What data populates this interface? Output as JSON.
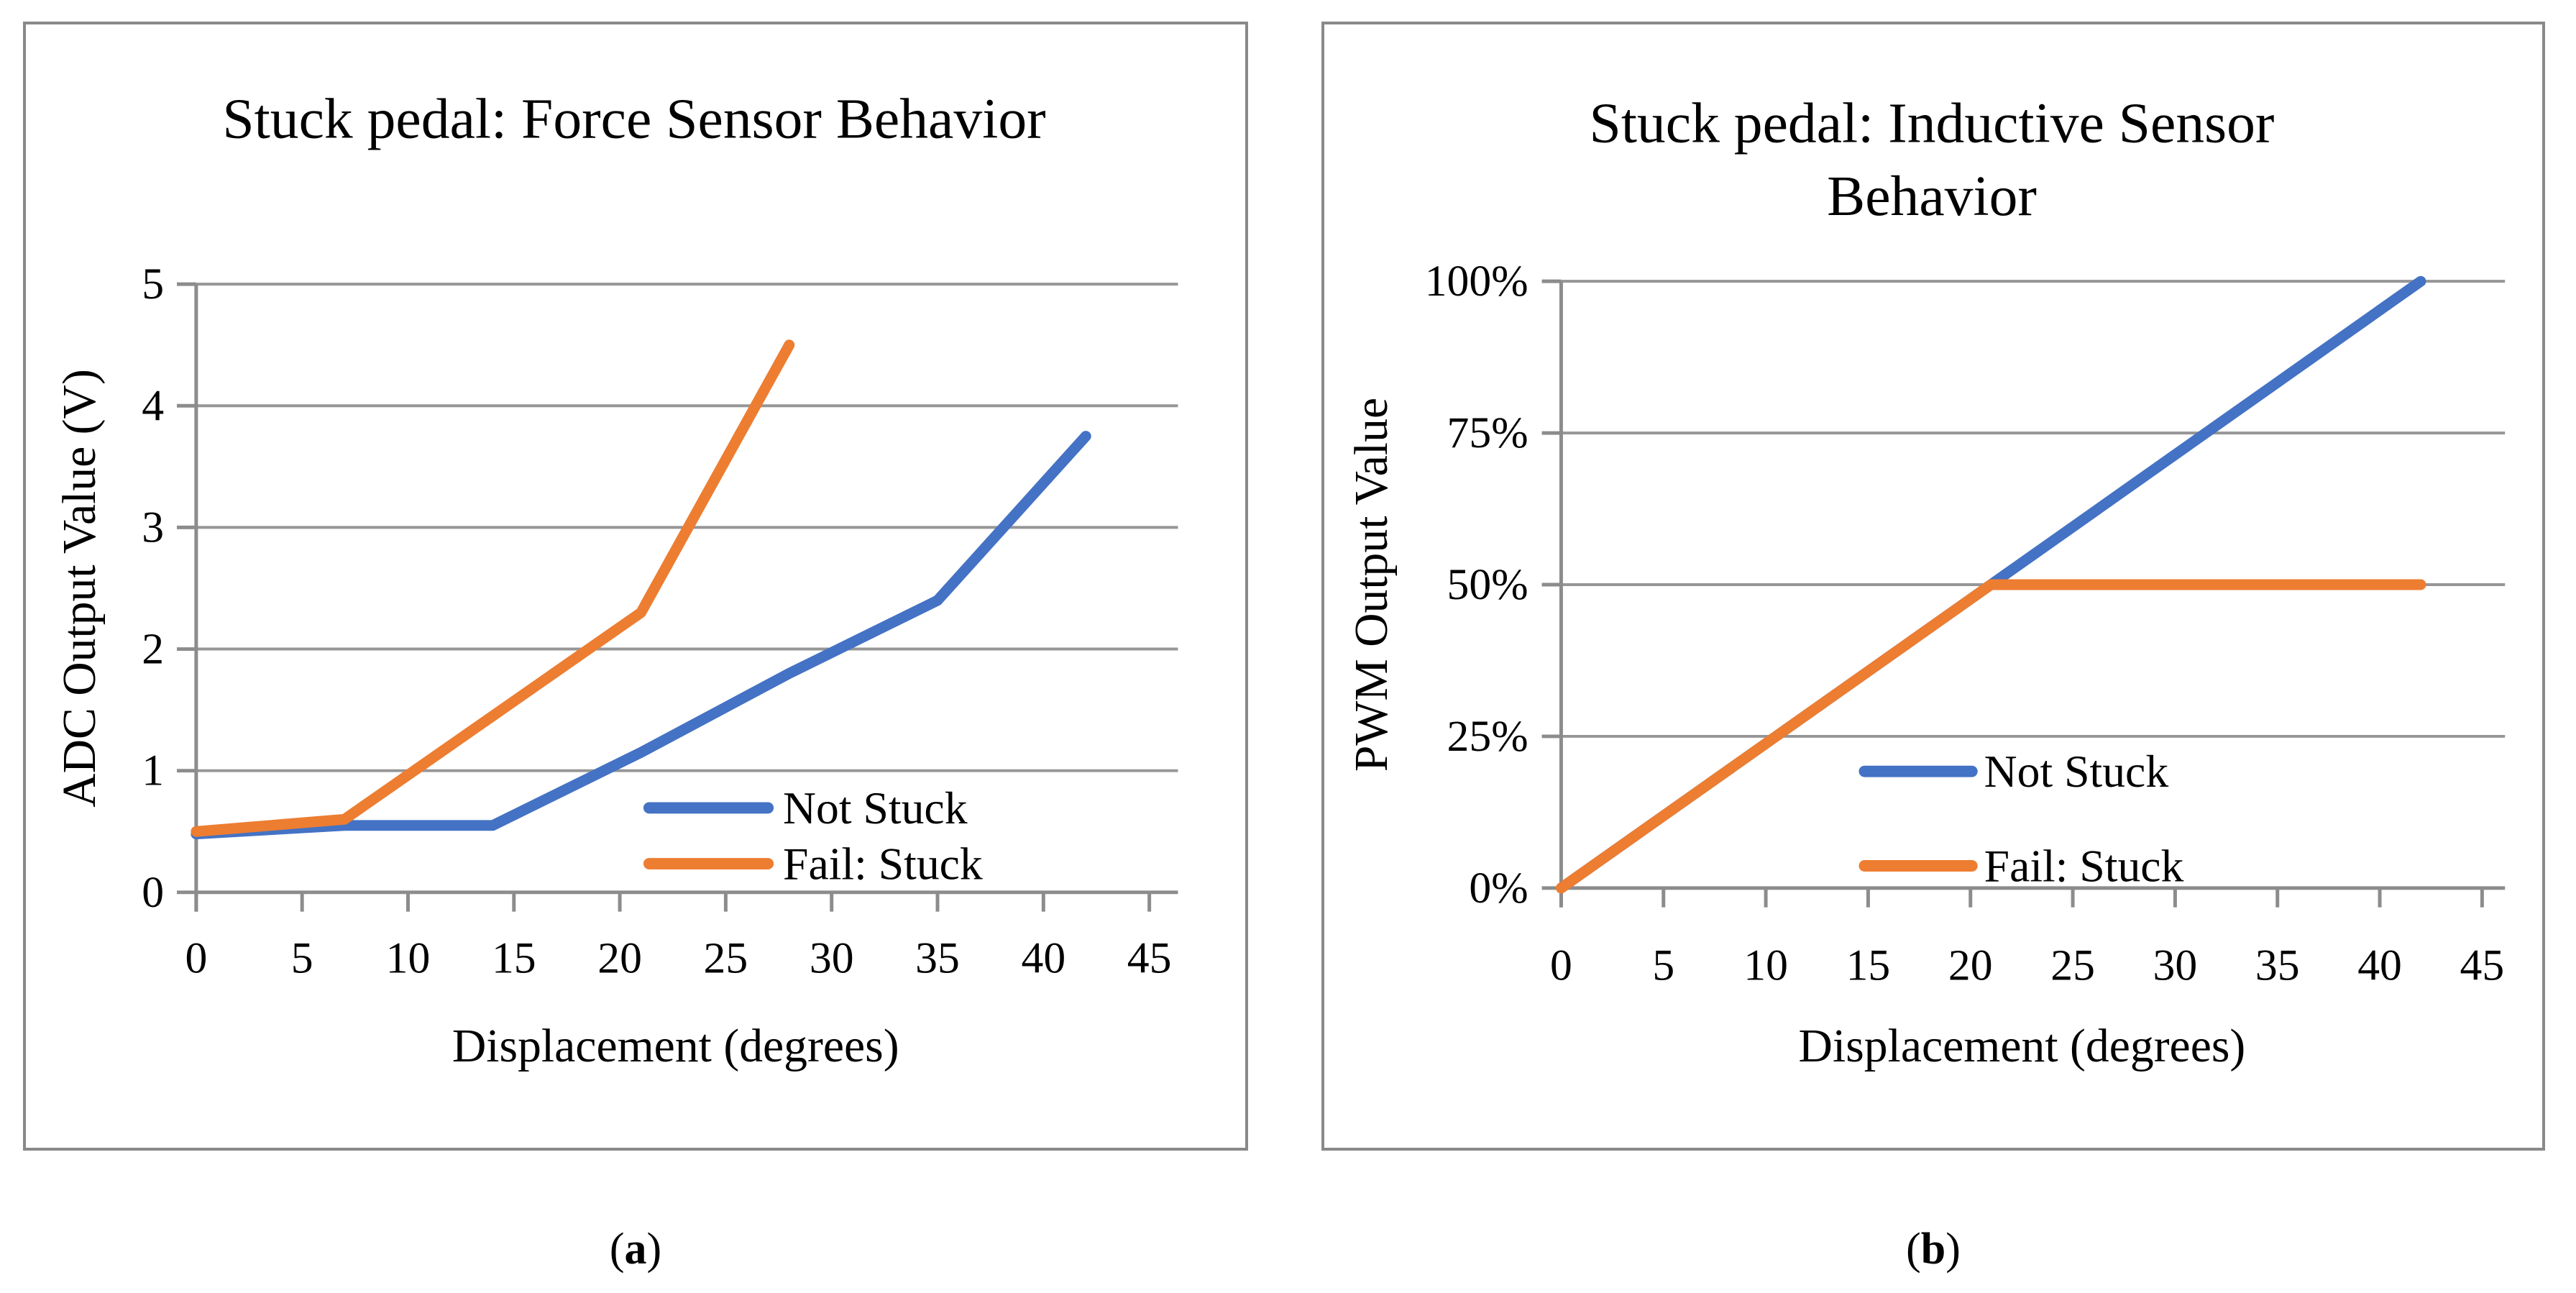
{
  "figure": {
    "captions": [
      {
        "open": "(",
        "label": "a",
        "close": ")"
      },
      {
        "open": "(",
        "label": "b",
        "close": ")"
      }
    ],
    "colors": {
      "series_blue": "#4472C4",
      "series_orange": "#ED7D31",
      "gridline": "#969696",
      "axis": "#8C8C8C",
      "panel_border": "#898989",
      "background": "#FFFFFF",
      "text": "#000000"
    }
  },
  "chart_data": [
    {
      "id": "a",
      "type": "line",
      "title": "Stuck pedal: Force Sensor Behavior",
      "title_lines": [
        "Stuck pedal: Force Sensor Behavior"
      ],
      "xlabel": "Displacement (degrees)",
      "ylabel": "ADC Output Value (V)",
      "xlim": [
        0,
        45
      ],
      "ylim": [
        0,
        5
      ],
      "x_ticks": [
        0,
        5,
        10,
        15,
        20,
        25,
        30,
        35,
        40,
        45
      ],
      "y_ticks": [
        {
          "value": 0,
          "label": "0"
        },
        {
          "value": 1,
          "label": "1"
        },
        {
          "value": 2,
          "label": "2"
        },
        {
          "value": 3,
          "label": "3"
        },
        {
          "value": 4,
          "label": "4"
        },
        {
          "value": 5,
          "label": "5"
        }
      ],
      "grid": "horizontal",
      "legend_position": "inside-lower-right",
      "series": [
        {
          "name": "Not Stuck",
          "color": "#4472C4",
          "x": [
            0,
            7,
            14,
            21,
            28,
            35,
            42
          ],
          "y": [
            0.48,
            0.55,
            0.55,
            1.15,
            1.8,
            2.4,
            3.75
          ]
        },
        {
          "name": "Fail: Stuck",
          "color": "#ED7D31",
          "x": [
            0,
            7,
            14,
            21,
            28
          ],
          "y": [
            0.5,
            0.6,
            1.45,
            2.3,
            4.5
          ]
        }
      ]
    },
    {
      "id": "b",
      "type": "line",
      "title": "Stuck pedal: Inductive Sensor Behavior",
      "title_lines": [
        "Stuck pedal: Inductive Sensor",
        "Behavior"
      ],
      "xlabel": "Displacement (degrees)",
      "ylabel": "PWM Output Value",
      "xlim": [
        0,
        45
      ],
      "ylim": [
        0,
        100
      ],
      "x_ticks": [
        0,
        5,
        10,
        15,
        20,
        25,
        30,
        35,
        40,
        45
      ],
      "y_ticks": [
        {
          "value": 0,
          "label": "0%"
        },
        {
          "value": 25,
          "label": "25%"
        },
        {
          "value": 50,
          "label": "50%"
        },
        {
          "value": 75,
          "label": "75%"
        },
        {
          "value": 100,
          "label": "100%"
        }
      ],
      "grid": "horizontal",
      "legend_position": "inside-lower-center",
      "series": [
        {
          "name": "Not Stuck",
          "color": "#4472C4",
          "x": [
            0,
            21,
            42
          ],
          "y": [
            0,
            50,
            100
          ]
        },
        {
          "name": "Fail: Stuck",
          "color": "#ED7D31",
          "x": [
            0,
            21,
            42
          ],
          "y": [
            0,
            50,
            50
          ]
        }
      ]
    }
  ]
}
